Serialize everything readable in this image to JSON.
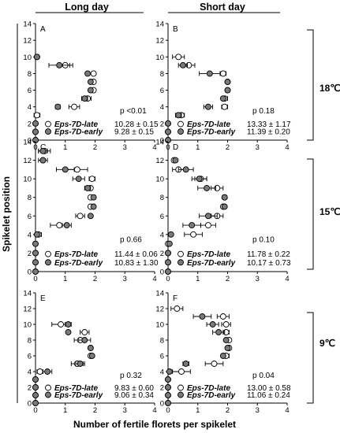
{
  "figure": {
    "column_titles": [
      "Long day",
      "Short day"
    ],
    "row_labels": [
      "18℃",
      "15℃",
      "9℃"
    ],
    "xlabel": "Number of fertile florets per spikelet",
    "ylabel": "Spikelet position",
    "colors": {
      "late_fill": "#ffffff",
      "early_fill": "#7a7a7a",
      "stroke": "#000000"
    }
  },
  "chart_data": [
    {
      "type": "scatter",
      "panel": "A",
      "xlim": [
        0,
        4
      ],
      "ylim": [
        0,
        14
      ],
      "xticks": [
        "0",
        "1",
        "2",
        "3",
        "4"
      ],
      "yticks": [
        "0",
        "2",
        "4",
        "6",
        "8",
        "10",
        "12",
        "14"
      ],
      "pvalue": "p <0.01",
      "legend": [
        {
          "label": "Eps-7D-late",
          "stat": "10.28 ± 0.15",
          "marker": "open"
        },
        {
          "label": "Eps-7D-early",
          "stat": "9.28 ± 0.15",
          "marker": "filled"
        }
      ],
      "series": [
        {
          "marker": "open",
          "points": [
            {
              "x": 0,
              "y": 0
            },
            {
              "x": 0,
              "y": 1
            },
            {
              "x": 0,
              "y": 2
            },
            {
              "x": 0.05,
              "y": 3,
              "err": 0.1
            },
            {
              "x": 1.3,
              "y": 4,
              "err": 0.18
            },
            {
              "x": 1.75,
              "y": 5,
              "err": 0.12
            },
            {
              "x": 1.95,
              "y": 6
            },
            {
              "x": 1.95,
              "y": 7
            },
            {
              "x": 1.95,
              "y": 8
            },
            {
              "x": 1.0,
              "y": 9,
              "err": 0.25
            },
            {
              "x": 0.05,
              "y": 10
            }
          ]
        },
        {
          "marker": "filled",
          "points": [
            {
              "x": 0,
              "y": 0
            },
            {
              "x": 0,
              "y": 1
            },
            {
              "x": 0,
              "y": 2
            },
            {
              "x": 0.75,
              "y": 4,
              "err": 0.08
            },
            {
              "x": 1.65,
              "y": 5,
              "err": 0.1
            },
            {
              "x": 1.85,
              "y": 6
            },
            {
              "x": 1.85,
              "y": 7
            },
            {
              "x": 1.75,
              "y": 8
            },
            {
              "x": 0.8,
              "y": 9,
              "err": 0.35
            },
            {
              "x": 0.05,
              "y": 10
            }
          ]
        }
      ]
    },
    {
      "type": "scatter",
      "panel": "B",
      "xlim": [
        0,
        4
      ],
      "ylim": [
        0,
        14
      ],
      "xticks": [
        "0",
        "1",
        "2",
        "3",
        "4"
      ],
      "yticks": [
        "0",
        "2",
        "4",
        "6",
        "8",
        "10",
        "12",
        "14"
      ],
      "pvalue": "p 0.18",
      "legend": [
        {
          "label": "Eps-7D-late",
          "stat": "13.33 ± 1.17",
          "marker": "open"
        },
        {
          "label": "Eps-7D-early",
          "stat": "11.39 ± 0.20",
          "marker": "filled"
        }
      ],
      "series": [
        {
          "marker": "open",
          "points": [
            {
              "x": 0,
              "y": 0
            },
            {
              "x": 0,
              "y": 1
            },
            {
              "x": 0,
              "y": 2
            },
            {
              "x": 0.45,
              "y": 3,
              "err": 0.1
            },
            {
              "x": 1.9,
              "y": 4,
              "err": 0.1
            },
            {
              "x": 1.9,
              "y": 5,
              "err": 0.1
            },
            {
              "x": 2.0,
              "y": 6
            },
            {
              "x": 2.0,
              "y": 7
            },
            {
              "x": 1.85,
              "y": 8,
              "err": 0.1
            },
            {
              "x": 0.7,
              "y": 9,
              "err": 0.2
            },
            {
              "x": 0.35,
              "y": 10,
              "err": 0.2
            }
          ]
        },
        {
          "marker": "filled",
          "points": [
            {
              "x": 0,
              "y": 0
            },
            {
              "x": 0,
              "y": 1
            },
            {
              "x": 0,
              "y": 2
            },
            {
              "x": 0.35,
              "y": 3,
              "err": 0.1
            },
            {
              "x": 1.35,
              "y": 4,
              "err": 0.15
            },
            {
              "x": 1.85,
              "y": 5
            },
            {
              "x": 2.0,
              "y": 6
            },
            {
              "x": 2.0,
              "y": 7
            },
            {
              "x": 1.4,
              "y": 8,
              "err": 0.35
            },
            {
              "x": 0.5,
              "y": 9,
              "err": 0.15
            }
          ]
        }
      ]
    },
    {
      "type": "scatter",
      "panel": "C",
      "xlim": [
        0,
        4
      ],
      "ylim": [
        0,
        14
      ],
      "xticks": [
        "0",
        "1",
        "2",
        "3",
        "4"
      ],
      "yticks": [
        "0",
        "2",
        "4",
        "6",
        "8",
        "10",
        "12",
        "14"
      ],
      "pvalue": "p 0.66",
      "legend": [
        {
          "label": "Eps-7D-late",
          "stat": "11.44 ± 0.06",
          "marker": "open"
        },
        {
          "label": "Eps-7D-early",
          "stat": "10.83 ± 1.30",
          "marker": "filled"
        }
      ],
      "series": [
        {
          "marker": "open",
          "points": [
            {
              "x": 0,
              "y": 0
            },
            {
              "x": 0,
              "y": 1
            },
            {
              "x": 0,
              "y": 2
            },
            {
              "x": 0,
              "y": 3
            },
            {
              "x": 0.1,
              "y": 4,
              "err": 0.1
            },
            {
              "x": 0.8,
              "y": 5,
              "err": 0.3
            },
            {
              "x": 1.5,
              "y": 6,
              "err": 0.15
            },
            {
              "x": 1.85,
              "y": 7
            },
            {
              "x": 1.85,
              "y": 8
            },
            {
              "x": 1.85,
              "y": 9
            },
            {
              "x": 1.9,
              "y": 10,
              "err": 0.1
            },
            {
              "x": 1.4,
              "y": 11,
              "err": 0.35
            },
            {
              "x": 0.25,
              "y": 12
            },
            {
              "x": 0.3,
              "y": 13,
              "err": 0.2
            }
          ]
        },
        {
          "marker": "filled",
          "points": [
            {
              "x": 0,
              "y": 0
            },
            {
              "x": 0,
              "y": 1
            },
            {
              "x": 0,
              "y": 2
            },
            {
              "x": 0,
              "y": 3
            },
            {
              "x": 0.05,
              "y": 4
            },
            {
              "x": 1.05,
              "y": 5,
              "err": 0.15
            },
            {
              "x": 1.85,
              "y": 6
            },
            {
              "x": 1.95,
              "y": 7
            },
            {
              "x": 1.95,
              "y": 8
            },
            {
              "x": 1.75,
              "y": 9,
              "err": 0.1
            },
            {
              "x": 1.45,
              "y": 10,
              "err": 0.2
            },
            {
              "x": 1.0,
              "y": 11,
              "err": 0.3
            },
            {
              "x": 0.25,
              "y": 12,
              "err": 0.15
            },
            {
              "x": 0.25,
              "y": 13,
              "err": 0.15
            }
          ]
        }
      ]
    },
    {
      "type": "scatter",
      "panel": "D",
      "xlim": [
        0,
        4
      ],
      "ylim": [
        0,
        14
      ],
      "xticks": [
        "0",
        "1",
        "2",
        "3",
        "4"
      ],
      "yticks": [
        "0",
        "2",
        "4",
        "6",
        "8",
        "10",
        "12",
        "14"
      ],
      "pvalue": "p 0.10",
      "legend": [
        {
          "label": "Eps-7D-late",
          "stat": "11.78 ± 0.22",
          "marker": "open"
        },
        {
          "label": "Eps-7D-early",
          "stat": "10.17 ± 0.73",
          "marker": "filled"
        }
      ],
      "series": [
        {
          "marker": "open",
          "points": [
            {
              "x": 0,
              "y": 0
            },
            {
              "x": 0,
              "y": 1
            },
            {
              "x": 0,
              "y": 2
            },
            {
              "x": 0,
              "y": 3
            },
            {
              "x": 0.85,
              "y": 4,
              "err": 0.3
            },
            {
              "x": 1.35,
              "y": 5,
              "err": 0.25
            },
            {
              "x": 1.65,
              "y": 6,
              "err": 0.2
            },
            {
              "x": 1.85,
              "y": 7
            },
            {
              "x": 1.9,
              "y": 8
            },
            {
              "x": 1.65,
              "y": 9,
              "err": 0.2
            },
            {
              "x": 1.1,
              "y": 10,
              "err": 0.2
            },
            {
              "x": 0.35,
              "y": 11,
              "err": 0.2
            },
            {
              "x": 0.2,
              "y": 12
            }
          ]
        },
        {
          "marker": "filled",
          "points": [
            {
              "x": 0,
              "y": 0
            },
            {
              "x": 0,
              "y": 1
            },
            {
              "x": 0,
              "y": 2
            },
            {
              "x": 0.05,
              "y": 3
            },
            {
              "x": 0.1,
              "y": 4
            },
            {
              "x": 0.8,
              "y": 5,
              "err": 0.3
            },
            {
              "x": 1.35,
              "y": 6,
              "err": 0.3
            },
            {
              "x": 1.9,
              "y": 7
            },
            {
              "x": 1.9,
              "y": 8
            },
            {
              "x": 1.3,
              "y": 9,
              "err": 0.3
            },
            {
              "x": 1.05,
              "y": 10,
              "err": 0.25
            },
            {
              "x": 0.6,
              "y": 11,
              "err": 0.25
            },
            {
              "x": 0.25,
              "y": 12
            }
          ]
        }
      ]
    },
    {
      "type": "scatter",
      "panel": "E",
      "xlim": [
        0,
        4
      ],
      "ylim": [
        0,
        14
      ],
      "xticks": [
        "0",
        "1",
        "2",
        "3",
        "4"
      ],
      "yticks": [
        "0",
        "2",
        "4",
        "6",
        "8",
        "10",
        "12",
        "14"
      ],
      "pvalue": "p 0.32",
      "legend": [
        {
          "label": "Eps-7D-late",
          "stat": "9.83 ± 0.60",
          "marker": "open"
        },
        {
          "label": "Eps-7D-early",
          "stat": "9.06 ± 0.34",
          "marker": "filled"
        }
      ],
      "series": [
        {
          "marker": "open",
          "points": [
            {
              "x": 0,
              "y": 0
            },
            {
              "x": 0,
              "y": 1
            },
            {
              "x": 0,
              "y": 2
            },
            {
              "x": 0,
              "y": 3
            },
            {
              "x": 0.15,
              "y": 4,
              "err": 0.1
            },
            {
              "x": 1.4,
              "y": 5,
              "err": 0.2
            },
            {
              "x": 1.85,
              "y": 6
            },
            {
              "x": 1.85,
              "y": 7
            },
            {
              "x": 1.5,
              "y": 8,
              "err": 0.2
            },
            {
              "x": 1.65,
              "y": 9,
              "err": 0.15
            },
            {
              "x": 0.85,
              "y": 10,
              "err": 0.3
            }
          ]
        },
        {
          "marker": "filled",
          "points": [
            {
              "x": 0,
              "y": 0
            },
            {
              "x": 0,
              "y": 1
            },
            {
              "x": 0,
              "y": 2
            },
            {
              "x": 0,
              "y": 3
            },
            {
              "x": 0.4,
              "y": 4,
              "err": 0.15
            },
            {
              "x": 1.5,
              "y": 5,
              "err": 0.15
            },
            {
              "x": 1.9,
              "y": 6
            },
            {
              "x": 1.85,
              "y": 7
            },
            {
              "x": 1.65,
              "y": 8,
              "err": 0.2
            },
            {
              "x": 1.1,
              "y": 9
            },
            {
              "x": 1.1,
              "y": 10,
              "err": 0.1
            }
          ]
        }
      ]
    },
    {
      "type": "scatter",
      "panel": "F",
      "xlim": [
        0,
        4
      ],
      "ylim": [
        0,
        14
      ],
      "xticks": [
        "0",
        "1",
        "2",
        "3",
        "4"
      ],
      "yticks": [
        "0",
        "2",
        "4",
        "6",
        "8",
        "10",
        "12",
        "14"
      ],
      "pvalue": "p 0.04",
      "legend": [
        {
          "label": "Eps-7D-late",
          "stat": "13.00 ± 0.58",
          "marker": "open"
        },
        {
          "label": "Eps-7D-early",
          "stat": "11.06 ± 0.24",
          "marker": "filled"
        }
      ],
      "series": [
        {
          "marker": "open",
          "points": [
            {
              "x": 0,
              "y": 0
            },
            {
              "x": 0,
              "y": 1
            },
            {
              "x": 0,
              "y": 2
            },
            {
              "x": 0,
              "y": 3
            },
            {
              "x": 0.45,
              "y": 4,
              "err": 0.3
            },
            {
              "x": 1.55,
              "y": 5,
              "err": 0.3
            },
            {
              "x": 1.95,
              "y": 6,
              "err": 0.1
            },
            {
              "x": 2.05,
              "y": 7
            },
            {
              "x": 2.05,
              "y": 8
            },
            {
              "x": 1.95,
              "y": 9,
              "err": 0.1
            },
            {
              "x": 1.95,
              "y": 10,
              "err": 0.15
            },
            {
              "x": 1.85,
              "y": 11,
              "err": 0.2
            },
            {
              "x": 0.3,
              "y": 12,
              "err": 0.2
            }
          ]
        },
        {
          "marker": "filled",
          "points": [
            {
              "x": 0,
              "y": 0
            },
            {
              "x": 0,
              "y": 1
            },
            {
              "x": 0,
              "y": 2
            },
            {
              "x": 0,
              "y": 3
            },
            {
              "x": 0.05,
              "y": 4
            },
            {
              "x": 0.6,
              "y": 5,
              "err": 0.1
            },
            {
              "x": 1.85,
              "y": 6
            },
            {
              "x": 2.0,
              "y": 7
            },
            {
              "x": 1.95,
              "y": 8
            },
            {
              "x": 1.7,
              "y": 9,
              "err": 0.2
            },
            {
              "x": 1.5,
              "y": 10,
              "err": 0.2
            },
            {
              "x": 1.15,
              "y": 11,
              "err": 0.3
            }
          ]
        }
      ]
    }
  ]
}
